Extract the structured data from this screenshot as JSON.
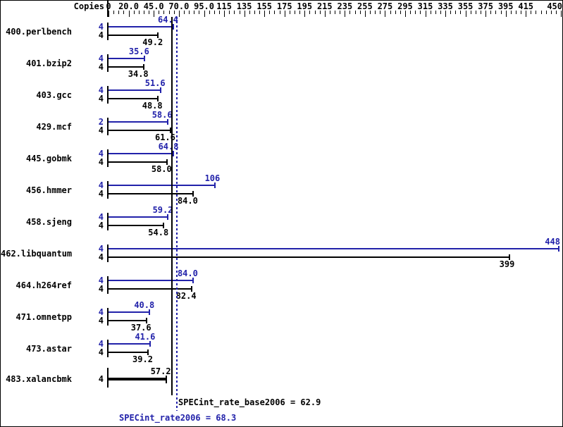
{
  "header": {
    "copies_label": "Copies"
  },
  "colors": {
    "peak_blue": "#2222aa",
    "base_black": "#000000",
    "background": "#ffffff"
  },
  "chart_data": {
    "type": "bar",
    "orientation": "horizontal",
    "xlim": [
      0,
      450
    ],
    "grid": false,
    "minor_tick_step": 5,
    "x_axis_tick_labels": [
      {
        "value": 0,
        "text": "0"
      },
      {
        "value": 20,
        "text": "20.0"
      },
      {
        "value": 45,
        "text": "45.0"
      },
      {
        "value": 70,
        "text": "70.0"
      },
      {
        "value": 95,
        "text": "95.0"
      },
      {
        "value": 115,
        "text": "115"
      },
      {
        "value": 135,
        "text": "135"
      },
      {
        "value": 155,
        "text": "155"
      },
      {
        "value": 175,
        "text": "175"
      },
      {
        "value": 195,
        "text": "195"
      },
      {
        "value": 215,
        "text": "215"
      },
      {
        "value": 235,
        "text": "235"
      },
      {
        "value": 255,
        "text": "255"
      },
      {
        "value": 275,
        "text": "275"
      },
      {
        "value": 295,
        "text": "295"
      },
      {
        "value": 315,
        "text": "315"
      },
      {
        "value": 335,
        "text": "335"
      },
      {
        "value": 355,
        "text": "355"
      },
      {
        "value": 375,
        "text": "375"
      },
      {
        "value": 395,
        "text": "395"
      },
      {
        "value": 415,
        "text": "415"
      },
      {
        "value": 450,
        "text": "450"
      }
    ],
    "benchmarks": [
      {
        "label": "400.perlbench",
        "bars": [
          {
            "kind": "peak",
            "copies": "4",
            "value": 64.4,
            "display": "64.4"
          },
          {
            "kind": "base",
            "copies": "4",
            "value": 49.2,
            "display": "49.2"
          }
        ]
      },
      {
        "label": "401.bzip2",
        "bars": [
          {
            "kind": "peak",
            "copies": "4",
            "value": 35.6,
            "display": "35.6"
          },
          {
            "kind": "base",
            "copies": "4",
            "value": 34.8,
            "display": "34.8"
          }
        ]
      },
      {
        "label": "403.gcc",
        "bars": [
          {
            "kind": "peak",
            "copies": "4",
            "value": 51.6,
            "display": "51.6"
          },
          {
            "kind": "base",
            "copies": "4",
            "value": 48.8,
            "display": "48.8"
          }
        ]
      },
      {
        "label": "429.mcf",
        "bars": [
          {
            "kind": "peak",
            "copies": "2",
            "value": 58.6,
            "display": "58.6"
          },
          {
            "kind": "base",
            "copies": "4",
            "value": 61.6,
            "display": "61.6"
          }
        ]
      },
      {
        "label": "445.gobmk",
        "bars": [
          {
            "kind": "peak",
            "copies": "4",
            "value": 64.8,
            "display": "64.8"
          },
          {
            "kind": "base",
            "copies": "4",
            "value": 58.0,
            "display": "58.0"
          }
        ]
      },
      {
        "label": "456.hmmer",
        "bars": [
          {
            "kind": "peak",
            "copies": "4",
            "value": 106,
            "display": "106"
          },
          {
            "kind": "base",
            "copies": "4",
            "value": 84.0,
            "display": "84.0"
          }
        ]
      },
      {
        "label": "458.sjeng",
        "bars": [
          {
            "kind": "peak",
            "copies": "4",
            "value": 59.2,
            "display": "59.2"
          },
          {
            "kind": "base",
            "copies": "4",
            "value": 54.8,
            "display": "54.8"
          }
        ]
      },
      {
        "label": "462.libquantum",
        "bars": [
          {
            "kind": "peak",
            "copies": "4",
            "value": 448,
            "display": "448"
          },
          {
            "kind": "base",
            "copies": "4",
            "value": 399,
            "display": "399"
          }
        ]
      },
      {
        "label": "464.h264ref",
        "bars": [
          {
            "kind": "peak",
            "copies": "4",
            "value": 84.0,
            "display": "84.0"
          },
          {
            "kind": "base",
            "copies": "4",
            "value": 82.4,
            "display": "82.4"
          }
        ]
      },
      {
        "label": "471.omnetpp",
        "bars": [
          {
            "kind": "peak",
            "copies": "4",
            "value": 40.8,
            "display": "40.8"
          },
          {
            "kind": "base",
            "copies": "4",
            "value": 37.6,
            "display": "37.6"
          }
        ]
      },
      {
        "label": "473.astar",
        "bars": [
          {
            "kind": "peak",
            "copies": "4",
            "value": 41.6,
            "display": "41.6"
          },
          {
            "kind": "base",
            "copies": "4",
            "value": 39.2,
            "display": "39.2"
          }
        ]
      },
      {
        "label": "483.xalancbmk",
        "bars": [
          {
            "kind": "single",
            "copies": "4",
            "value": 57.2,
            "display": "57.2"
          }
        ]
      }
    ],
    "reference_lines": [
      {
        "name": "base-mean",
        "text": "SPECint_rate_base2006 = 62.9",
        "value": 62.9,
        "style": "solid",
        "color": "#000000"
      },
      {
        "name": "peak-mean",
        "text": "SPECint_rate2006 = 68.3",
        "value": 68.3,
        "style": "dotted",
        "color": "#2222aa"
      }
    ]
  }
}
